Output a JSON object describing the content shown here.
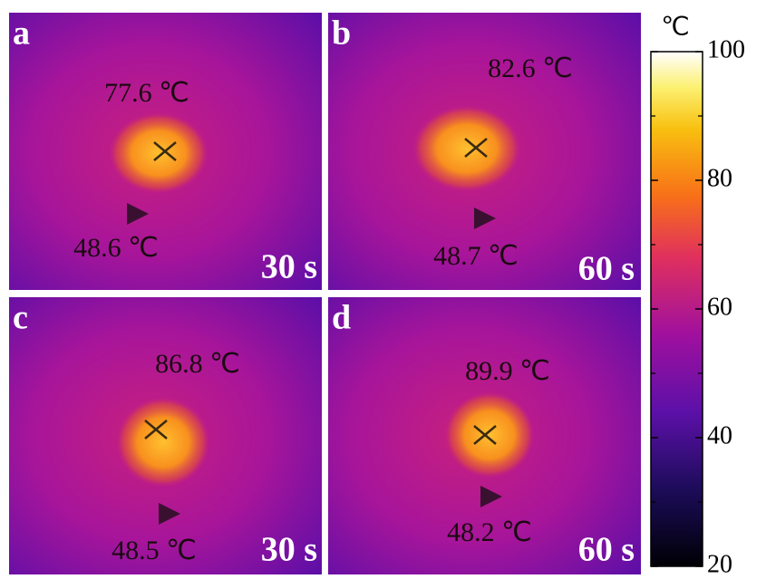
{
  "panels": [
    {
      "label": "a",
      "max_temp": "77.6 ℃",
      "min_temp": "48.6 ℃",
      "time": "30 s"
    },
    {
      "label": "b",
      "max_temp": "82.6 ℃",
      "min_temp": "48.7 ℃",
      "time": "60 s"
    },
    {
      "label": "c",
      "max_temp": "86.8 ℃",
      "min_temp": "48.5 ℃",
      "time": "30 s"
    },
    {
      "label": "d",
      "max_temp": "89.9 ℃",
      "min_temp": "48.2 ℃",
      "time": "60 s"
    }
  ],
  "colorbar": {
    "unit": "℃",
    "range": [
      20,
      100
    ],
    "ticks": [
      20,
      40,
      60,
      80,
      100
    ],
    "minor_ticks": [
      30,
      50,
      70,
      90
    ]
  }
}
